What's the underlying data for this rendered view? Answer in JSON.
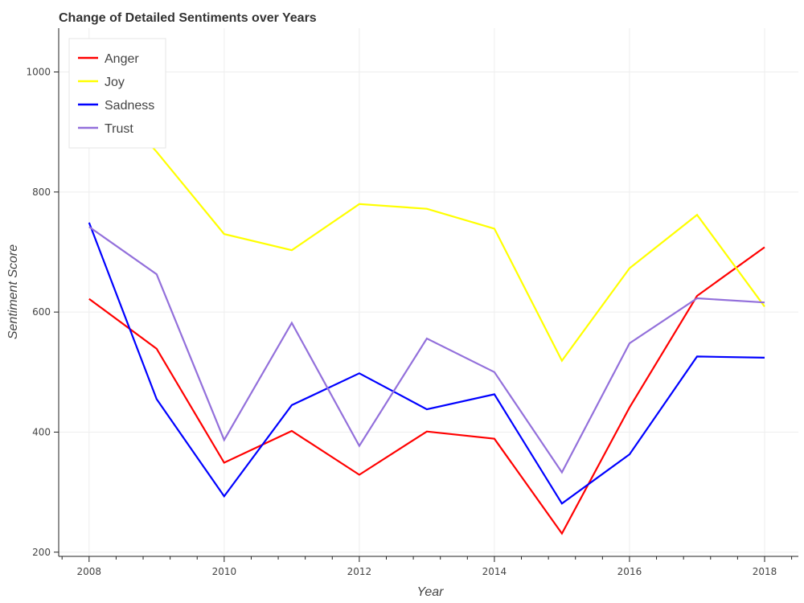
{
  "chart_data": {
    "type": "line",
    "title": "Change of Detailed Sentiments over Years",
    "xlabel": "Year",
    "ylabel": "Sentiment Score",
    "x": [
      2008,
      2009,
      2010,
      2011,
      2012,
      2013,
      2014,
      2015,
      2016,
      2017,
      2018
    ],
    "xlim": [
      2007.55,
      2018.5
    ],
    "ylim": [
      193,
      1073
    ],
    "x_ticks": [
      2008,
      2010,
      2012,
      2014,
      2016,
      2018
    ],
    "x_minor_ticks": [
      2007.6,
      2008.4,
      2008.8,
      2009.2,
      2009.6,
      2010.4,
      2010.8,
      2011.2,
      2011.6,
      2012.4,
      2012.8,
      2013.2,
      2013.6,
      2014.4,
      2014.8,
      2015.2,
      2015.6,
      2016.4,
      2016.8,
      2017.2,
      2017.6,
      2018.4
    ],
    "y_ticks": [
      200,
      400,
      600,
      800,
      1000
    ],
    "grid": true,
    "legend_position": "top-left",
    "series": [
      {
        "name": "Anger",
        "color": "#ff0000",
        "values": [
          622,
          539,
          349,
          402,
          329,
          401,
          389,
          231,
          441,
          627,
          708
        ]
      },
      {
        "name": "Joy",
        "color": "#ffff00",
        "values": [
          992,
          867,
          730,
          703,
          780,
          772,
          739,
          519,
          673,
          762,
          609
        ]
      },
      {
        "name": "Sadness",
        "color": "#0000ff",
        "values": [
          749,
          455,
          293,
          445,
          498,
          438,
          463,
          281,
          363,
          526,
          524
        ]
      },
      {
        "name": "Trust",
        "color": "#9370db",
        "values": [
          742,
          663,
          387,
          582,
          377,
          556,
          500,
          333,
          548,
          623,
          616
        ]
      }
    ]
  }
}
